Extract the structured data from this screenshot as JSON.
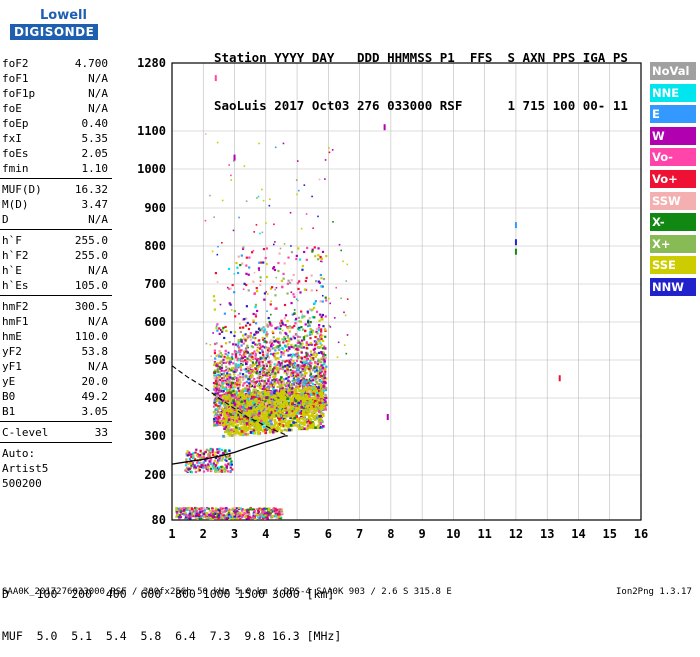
{
  "logo": {
    "line1": "Lowell",
    "line2": "DIGISONDE"
  },
  "header": {
    "line1": "Station YYYY DAY   DDD HHMMSS P1  FFS  S AXN PPS IGA PS",
    "line2": "SaoLuis 2017 Oct03 276 033000 RSF      1 715 100 00- 11"
  },
  "params": [
    {
      "group": [
        {
          "name": "foF2",
          "value": "4.700"
        },
        {
          "name": "foF1",
          "value": "N/A"
        },
        {
          "name": "foF1p",
          "value": "N/A"
        },
        {
          "name": "foE",
          "value": "N/A"
        },
        {
          "name": "foEp",
          "value": "0.40"
        },
        {
          "name": "fxI",
          "value": "5.35"
        },
        {
          "name": "foEs",
          "value": "2.05"
        },
        {
          "name": "fmin",
          "value": "1.10"
        }
      ]
    },
    {
      "group": [
        {
          "name": "MUF(D)",
          "value": "16.32"
        },
        {
          "name": "M(D)",
          "value": "3.47"
        },
        {
          "name": "D",
          "value": "N/A"
        }
      ]
    },
    {
      "group": [
        {
          "name": "h`F",
          "value": "255.0"
        },
        {
          "name": "h`F2",
          "value": "255.0"
        },
        {
          "name": "h`E",
          "value": "N/A"
        },
        {
          "name": "h`Es",
          "value": "105.0"
        }
      ]
    },
    {
      "group": [
        {
          "name": "hmF2",
          "value": "300.5"
        },
        {
          "name": "hmF1",
          "value": "N/A"
        },
        {
          "name": "hmE",
          "value": "110.0"
        },
        {
          "name": "yF2",
          "value": "53.8"
        },
        {
          "name": "yF1",
          "value": "N/A"
        },
        {
          "name": "yE",
          "value": "20.0"
        },
        {
          "name": "B0",
          "value": "49.2"
        },
        {
          "name": "B1",
          "value": "3.05"
        }
      ]
    },
    {
      "group": [
        {
          "name": "C-level",
          "value": "33"
        }
      ]
    }
  ],
  "auto": {
    "line1": "Auto:",
    "line2": "Artist5",
    "line3": "500200"
  },
  "legend": [
    {
      "label": "NoVal",
      "color": "#a0a0a0"
    },
    {
      "label": "NNE",
      "color": "#00e5ee"
    },
    {
      "label": "E",
      "color": "#3399ff"
    },
    {
      "label": "W",
      "color": "#b000b0"
    },
    {
      "label": "Vo-",
      "color": "#ff44aa"
    },
    {
      "label": "Vo+",
      "color": "#ee1133"
    },
    {
      "label": "SSW",
      "color": "#f4b0b0"
    },
    {
      "label": "X-",
      "color": "#118811"
    },
    {
      "label": "X+",
      "color": "#88bb55"
    },
    {
      "label": "SSE",
      "color": "#cccc00"
    },
    {
      "label": "NNW",
      "color": "#2222cc"
    }
  ],
  "dmuf": {
    "d_line": "D    100  200  400  600  800 1000 1500 3000 [km]",
    "muf_line": "MUF  5.0  5.1  5.4  5.8  6.4  7.3  9.8 16.3 [MHz]"
  },
  "footer": "SAA0K_2017276033000.RSF / 300fx256h 50 kHz 5.0 km / DPS-4 SAA0K 903 / 2.6 S 315.8 E",
  "version": "Ion2Png 1.3.17",
  "chart_data": {
    "type": "scatter",
    "x_ticks": [
      "1",
      "2",
      "3",
      "4",
      "5",
      "6",
      "7",
      "8",
      "9",
      "10",
      "11",
      "12",
      "13",
      "14",
      "15",
      "16"
    ],
    "y_ticks": [
      "80",
      "200",
      "300",
      "400",
      "500",
      "600",
      "700",
      "800",
      "900",
      "1000",
      "1100",
      "1280"
    ],
    "xlim": [
      1,
      16
    ],
    "y_axis": "piecewise-linear between tick values",
    "grid": true,
    "legend_placement": "right",
    "trace": {
      "x": [
        1.0,
        1.5,
        2.0,
        2.5,
        3.0,
        3.5,
        4.0,
        4.3,
        4.6,
        4.7
      ],
      "y": [
        228,
        234,
        240,
        248,
        258,
        272,
        285,
        292,
        300,
        300.5
      ]
    },
    "profile": {
      "x": [
        1.0,
        1.5,
        2.0,
        2.5,
        3.0,
        3.4,
        3.8,
        4.2,
        4.5,
        4.7
      ],
      "y": [
        485,
        455,
        430,
        400,
        372,
        350,
        335,
        318,
        308,
        300.5
      ]
    },
    "isolated_points": [
      {
        "x": 7.8,
        "y": 1110,
        "color": "#b000b0"
      },
      {
        "x": 12.0,
        "y": 855,
        "color": "#3399ff"
      },
      {
        "x": 12.0,
        "y": 810,
        "color": "#2222cc"
      },
      {
        "x": 12.0,
        "y": 785,
        "color": "#118811"
      },
      {
        "x": 13.4,
        "y": 452,
        "color": "#ee1133"
      },
      {
        "x": 7.9,
        "y": 350,
        "color": "#b000b0"
      },
      {
        "x": 2.4,
        "y": 1240,
        "color": "#ff44aa"
      },
      {
        "x": 3.0,
        "y": 1030,
        "color": "#b000b0"
      }
    ]
  }
}
